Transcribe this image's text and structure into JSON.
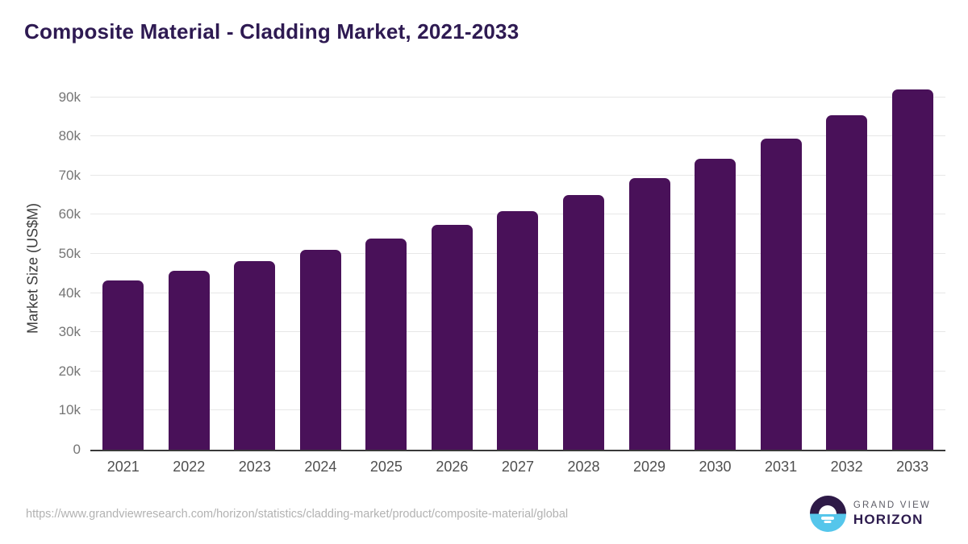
{
  "title": "Composite Material - Cladding Market, 2021-2033",
  "chart_data": {
    "type": "bar",
    "title": "Composite Material - Cladding Market, 2021-2033",
    "categories": [
      "2021",
      "2022",
      "2023",
      "2024",
      "2025",
      "2026",
      "2027",
      "2028",
      "2029",
      "2030",
      "2031",
      "2032",
      "2033"
    ],
    "values": [
      43200,
      45700,
      48100,
      51000,
      53900,
      57400,
      61000,
      65000,
      69400,
      74300,
      79400,
      85400,
      91900
    ],
    "xlabel": "",
    "ylabel": "Market Size (US$M)",
    "ylim": [
      0,
      92600
    ],
    "ytick_values": [
      0,
      10000,
      20000,
      30000,
      40000,
      50000,
      60000,
      70000,
      80000,
      90000
    ],
    "ytick_labels": [
      "0",
      "10k",
      "20k",
      "30k",
      "40k",
      "50k",
      "60k",
      "70k",
      "80k",
      "90k"
    ],
    "grid": true,
    "legend": "none",
    "bar_color": "#491159"
  },
  "colors": {
    "title_text": "#2e1a52",
    "bar": "#491159",
    "gridline": "#e7e7e7",
    "axis_line": "#3a3a3a",
    "y_tick_text": "#757575",
    "x_tick_text": "#4f4f4f",
    "url_text": "#b2b2b2",
    "logo_purple": "#2e1a47",
    "logo_blue": "#55c6eb"
  },
  "footer": {
    "source_url": "https://www.grandviewresearch.com/horizon/statistics/cladding-market/product/composite-material/global",
    "logo": {
      "line1": "GRAND VIEW",
      "line2": "HORIZON"
    }
  }
}
